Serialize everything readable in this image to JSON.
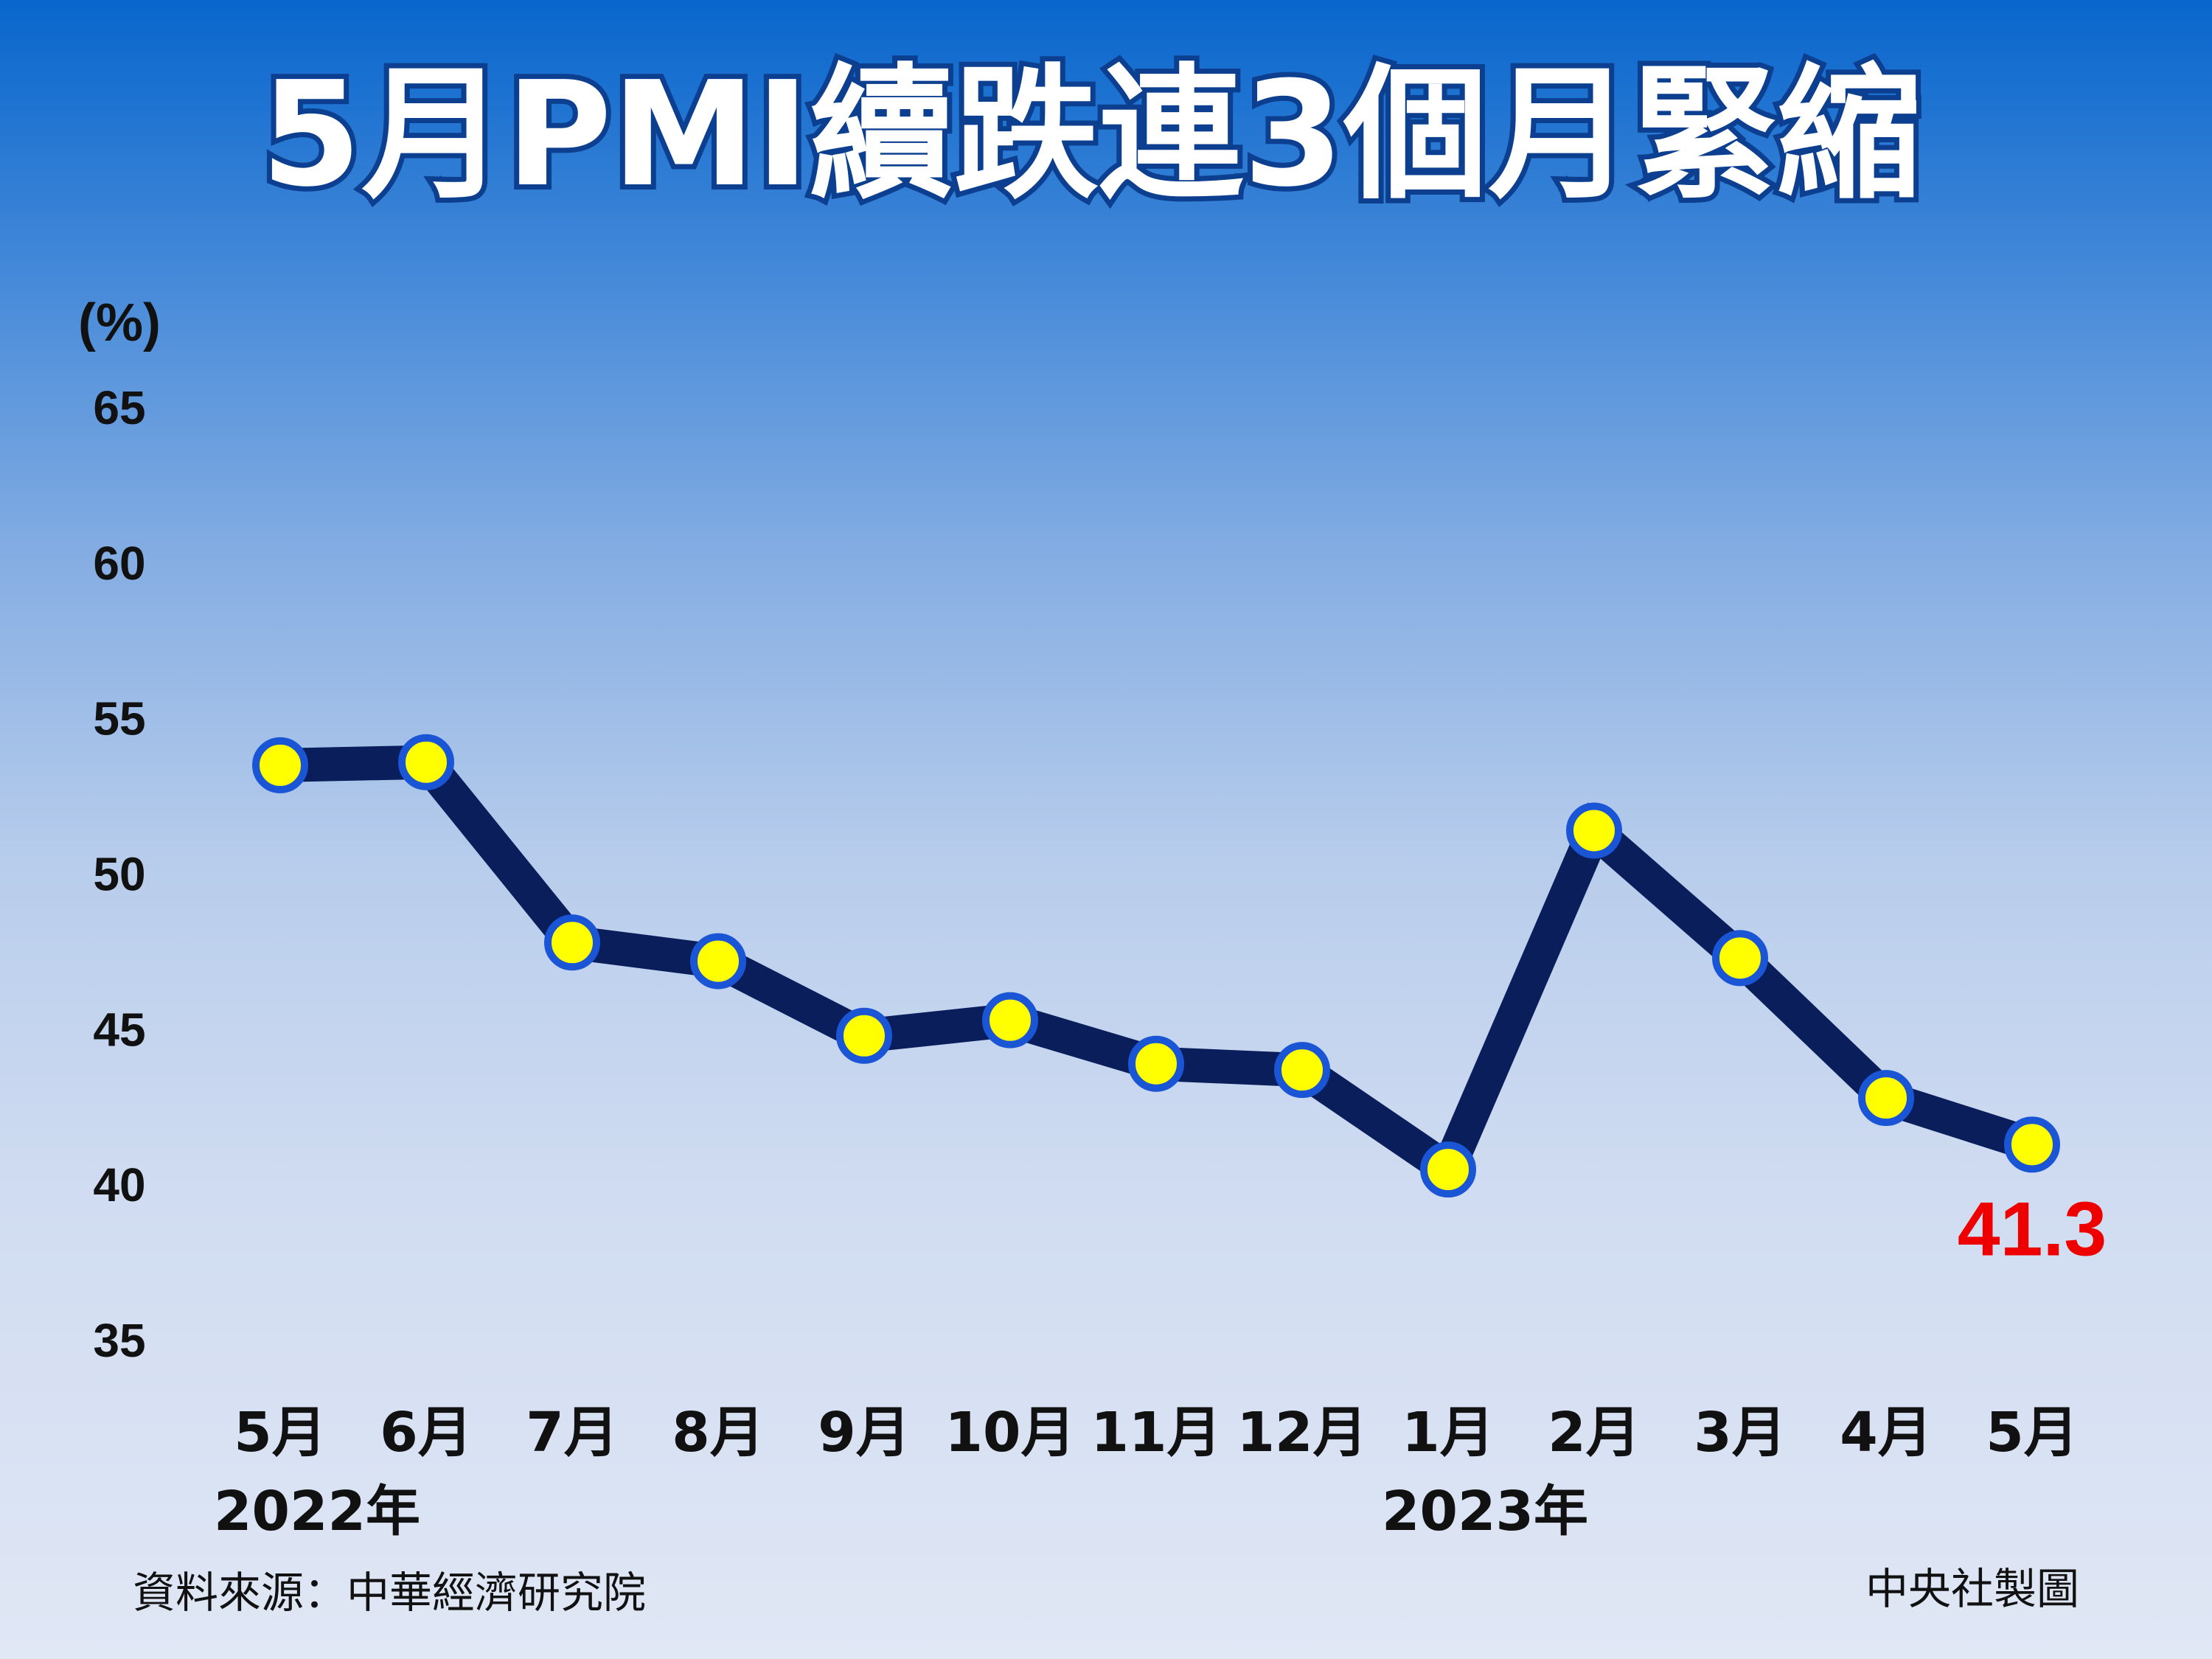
{
  "title": "5月PMI續跌連3個月緊縮",
  "source": "資料來源：中華經濟研究院",
  "credit": "中央社製圖",
  "colors": {
    "line": "#0a1e5c",
    "marker_fill": "#ffff00",
    "marker_stroke": "#1a55d6",
    "highlight": "#ee0000"
  },
  "chart_data": {
    "type": "line",
    "title": "5月PMI續跌連3個月緊縮",
    "xlabel": "",
    "ylabel": "(%)",
    "ylim": [
      35,
      65
    ],
    "yticks": [
      "65",
      "60",
      "55",
      "50",
      "45",
      "40",
      "35"
    ],
    "grid": false,
    "categories": [
      "5月",
      "6月",
      "7月",
      "8月",
      "9月",
      "10月",
      "11月",
      "12月",
      "1月",
      "2月",
      "3月",
      "4月",
      "5月"
    ],
    "year_labels": [
      {
        "label": "2022年",
        "category_index": 0
      },
      {
        "label": "2023年",
        "category_index": 8
      }
    ],
    "series": [
      {
        "values": [
          53.5,
          53.6,
          47.8,
          47.2,
          44.8,
          45.3,
          43.9,
          43.7,
          40.5,
          51.4,
          47.3,
          42.8,
          41.3
        ]
      }
    ],
    "annotations": [
      {
        "text": "41.3",
        "category_index": 12
      }
    ]
  }
}
